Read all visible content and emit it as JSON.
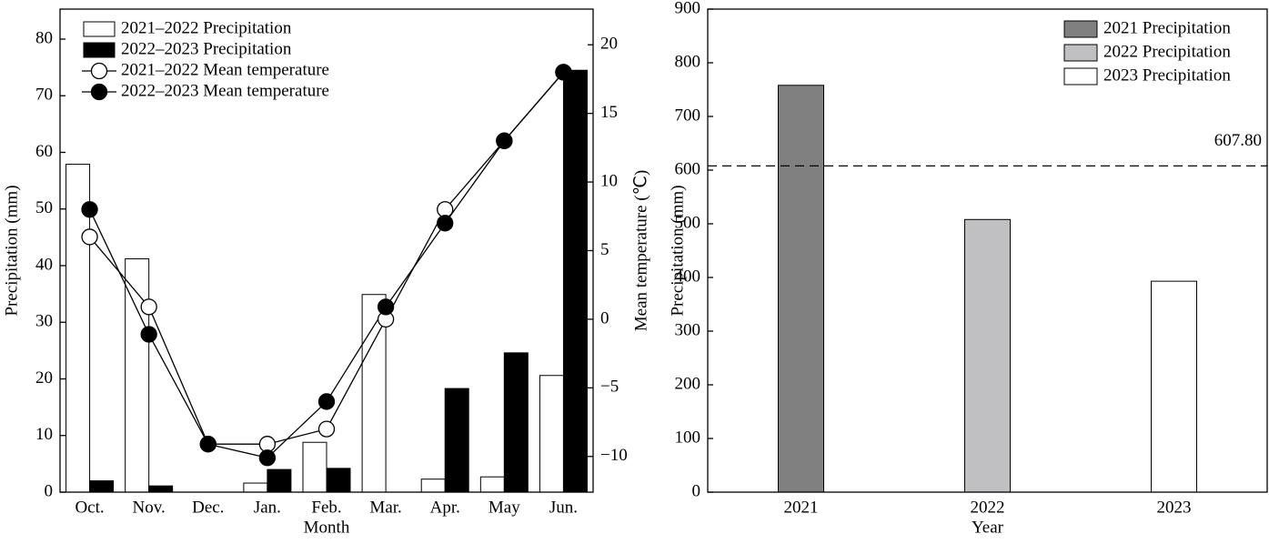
{
  "chart_data": [
    {
      "type": "bar_line",
      "x_label": "Month",
      "y_label": "Precipitation (mm)",
      "y2_label": "Mean temperature (℃)",
      "categories": [
        "Oct.",
        "Nov.",
        "Dec.",
        "Jan.",
        "Feb.",
        "Mar.",
        "Apr.",
        "May",
        "Jun."
      ],
      "series": [
        {
          "name": "2021–2022 Precipitation",
          "type": "bar",
          "color": "#ffffff",
          "values": [
            57.9,
            41.2,
            0,
            1.6,
            8.8,
            34.9,
            2.3,
            2.7,
            20.6
          ]
        },
        {
          "name": "2022–2023 Precipitation",
          "type": "bar",
          "color": "#000000",
          "values": [
            2.0,
            1.1,
            0,
            4.0,
            4.2,
            0,
            18.3,
            24.6,
            74.5
          ]
        },
        {
          "name": "2021–2022 Mean temperature",
          "type": "line",
          "axis": "y2",
          "color": "#000000",
          "marker_fill": "#ffffff",
          "values": [
            6.0,
            0.9,
            -9.1,
            -9.1,
            -8.0,
            0,
            8.0,
            13.0,
            18.0
          ]
        },
        {
          "name": "2022–2023 Mean temperature",
          "type": "line",
          "axis": "y2",
          "color": "#000000",
          "marker_fill": "#000000",
          "values": [
            8.0,
            -1.1,
            -9.1,
            -10.1,
            -6.0,
            0.9,
            7.0,
            13.0,
            18.0
          ]
        }
      ],
      "ylim": [
        0,
        85.3
      ],
      "yticks": [
        0,
        10,
        20,
        30,
        40,
        50,
        60,
        70,
        80
      ],
      "y2lim": [
        -12.6,
        22.6
      ],
      "y2ticks": [
        {
          "value": -10,
          "label": "−10"
        },
        {
          "value": -5,
          "label": "−5"
        },
        0,
        5,
        10,
        15,
        20
      ],
      "legend": "upper left"
    },
    {
      "type": "bar",
      "x_label": "Year",
      "y_label": "Precipitation (mm)",
      "categories": [
        "2021",
        "2022",
        "2023"
      ],
      "values": [
        758,
        508,
        393
      ],
      "colors": [
        "#808080",
        "#c0bfc2",
        "#ffffff"
      ],
      "legend_labels": [
        "2021 Precipitation",
        "2022 Precipitation",
        "2023 Precipitation"
      ],
      "reference_line": {
        "value": 607.8,
        "label": "607.80"
      },
      "ylim": [
        0,
        900
      ],
      "yticks": [
        0,
        100,
        200,
        300,
        400,
        500,
        600,
        700,
        800,
        900
      ],
      "legend": "upper right"
    }
  ]
}
